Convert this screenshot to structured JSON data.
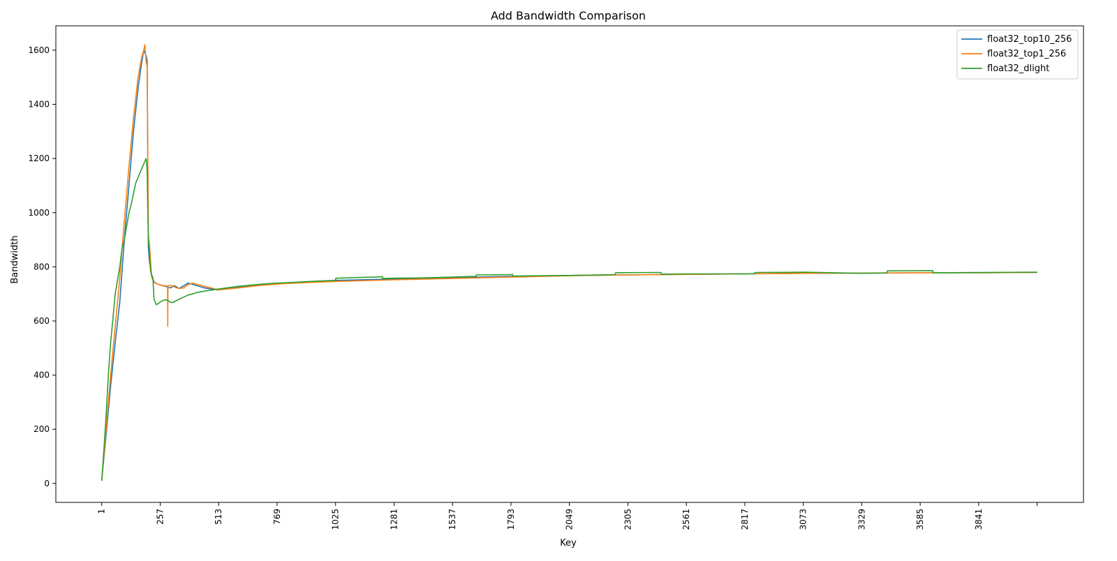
{
  "chart_data": {
    "type": "line",
    "title": "Add Bandwidth Comparison",
    "xlabel": "Key",
    "ylabel": "Bandwidth",
    "xlim": [
      -200,
      4300
    ],
    "ylim": [
      -70,
      1690
    ],
    "x_ticks": [
      {
        "value": 1,
        "label": "1"
      },
      {
        "value": 257,
        "label": "257"
      },
      {
        "value": 513,
        "label": "513"
      },
      {
        "value": 769,
        "label": "769"
      },
      {
        "value": 1025,
        "label": "1025"
      },
      {
        "value": 1281,
        "label": "1281"
      },
      {
        "value": 1537,
        "label": "1537"
      },
      {
        "value": 1793,
        "label": "1793"
      },
      {
        "value": 2049,
        "label": "2049"
      },
      {
        "value": 2305,
        "label": "2305"
      },
      {
        "value": 2561,
        "label": "2561"
      },
      {
        "value": 2817,
        "label": "2817"
      },
      {
        "value": 3073,
        "label": "3073"
      },
      {
        "value": 3329,
        "label": "3329"
      },
      {
        "value": 3585,
        "label": "3585"
      },
      {
        "value": 3841,
        "label": "3841"
      },
      {
        "value": 4097,
        "label": ""
      }
    ],
    "y_ticks": [
      0,
      200,
      400,
      600,
      800,
      1000,
      1200,
      1400,
      1600
    ],
    "grid": false,
    "legend_position": "top-right",
    "series": [
      {
        "name": "float32_top10_256",
        "color": "#1f77b4",
        "x": [
          1,
          20,
          40,
          60,
          80,
          100,
          120,
          140,
          160,
          175,
          185,
          195,
          200,
          205,
          210,
          220,
          230,
          240,
          250,
          260,
          280,
          300,
          320,
          340,
          360,
          380,
          400,
          420,
          450,
          480,
          513,
          600,
          700,
          800,
          900,
          1025,
          1281,
          1537,
          1793,
          2049,
          2305,
          2561,
          2817,
          3073,
          3329,
          3585,
          3841,
          4097
        ],
        "y": [
          10,
          180,
          360,
          520,
          670,
          900,
          1100,
          1300,
          1460,
          1550,
          1600,
          1580,
          1560,
          870,
          820,
          760,
          745,
          738,
          735,
          732,
          728,
          722,
          730,
          720,
          730,
          740,
          735,
          730,
          722,
          718,
          715,
          725,
          735,
          740,
          745,
          750,
          755,
          760,
          765,
          768,
          770,
          772,
          774,
          776,
          777,
          778,
          778,
          779
        ]
      },
      {
        "name": "float32_top1_256",
        "color": "#ff7f0e",
        "x": [
          1,
          20,
          40,
          60,
          80,
          100,
          120,
          140,
          160,
          175,
          185,
          190,
          195,
          200,
          205,
          210,
          220,
          230,
          240,
          250,
          260,
          280,
          289,
          290,
          291,
          300,
          320,
          340,
          360,
          380,
          400,
          420,
          450,
          480,
          513,
          600,
          700,
          800,
          900,
          1025,
          1281,
          1537,
          1793,
          2049,
          2305,
          2561,
          2817,
          3073,
          3329,
          3585,
          3841,
          4097
        ],
        "y": [
          10,
          200,
          400,
          580,
          760,
          970,
          1170,
          1350,
          1500,
          1570,
          1600,
          1620,
          1560,
          1540,
          920,
          880,
          760,
          742,
          738,
          735,
          732,
          730,
          728,
          580,
          730,
          732,
          725,
          720,
          722,
          735,
          740,
          735,
          728,
          722,
          715,
          722,
          732,
          738,
          742,
          746,
          752,
          757,
          762,
          767,
          770,
          772,
          774,
          776,
          777,
          778,
          778,
          779
        ]
      },
      {
        "name": "float32_dlight",
        "color": "#2ca02c",
        "x": [
          1,
          10,
          20,
          30,
          40,
          50,
          60,
          70,
          80,
          90,
          100,
          110,
          120,
          130,
          140,
          150,
          160,
          170,
          180,
          190,
          195,
          198,
          200,
          205,
          210,
          215,
          220,
          225,
          230,
          240,
          250,
          260,
          270,
          280,
          290,
          300,
          310,
          320,
          330,
          340,
          360,
          380,
          400,
          420,
          450,
          480,
          513,
          550,
          600,
          650,
          700,
          750,
          800,
          850,
          900,
          950,
          1000,
          1025,
          1026,
          1100,
          1200,
          1230,
          1231,
          1281,
          1400,
          1537,
          1640,
          1641,
          1793,
          1800,
          1801,
          2049,
          2250,
          2251,
          2450,
          2451,
          2561,
          2817,
          2860,
          2861,
          3073,
          3329,
          3440,
          3441,
          3640,
          3641,
          3841,
          4097
        ],
        "y": [
          10,
          120,
          250,
          400,
          520,
          610,
          700,
          750,
          800,
          870,
          900,
          950,
          1000,
          1030,
          1070,
          1110,
          1130,
          1150,
          1170,
          1190,
          1200,
          1180,
          1150,
          900,
          850,
          780,
          770,
          760,
          680,
          660,
          665,
          672,
          676,
          678,
          676,
          670,
          668,
          672,
          676,
          680,
          688,
          696,
          700,
          706,
          710,
          714,
          718,
          722,
          728,
          732,
          736,
          739,
          741,
          743,
          745,
          747,
          749,
          750,
          758,
          760,
          762,
          764,
          757,
          758,
          759,
          762,
          765,
          770,
          771,
          772,
          766,
          768,
          771,
          778,
          779,
          773,
          774,
          774,
          775,
          779,
          780,
          776,
          777,
          785,
          786,
          778,
          779,
          780
        ]
      }
    ]
  }
}
